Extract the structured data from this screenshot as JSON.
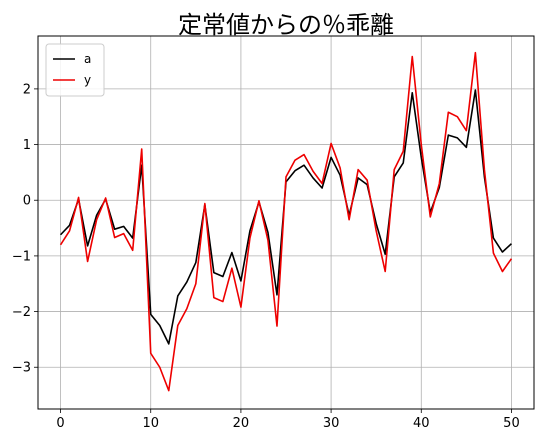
{
  "chart_data": {
    "type": "line",
    "title": "定常値からの％乖離",
    "xlabel": "",
    "ylabel": "",
    "xlim": [
      -2.5,
      52.5
    ],
    "ylim": [
      -3.75,
      2.95
    ],
    "xticks": [
      0,
      10,
      20,
      30,
      40,
      50
    ],
    "yticks": [
      -3,
      -2,
      -1,
      0,
      1,
      2
    ],
    "grid": true,
    "legend_position": "top-left",
    "x": [
      0,
      1,
      2,
      3,
      4,
      5,
      6,
      7,
      8,
      9,
      10,
      11,
      12,
      13,
      14,
      15,
      16,
      17,
      18,
      19,
      20,
      21,
      22,
      23,
      24,
      25,
      26,
      27,
      28,
      29,
      30,
      31,
      32,
      33,
      34,
      35,
      36,
      37,
      38,
      39,
      40,
      41,
      42,
      43,
      44,
      45,
      46,
      47,
      48,
      49,
      50
    ],
    "series": [
      {
        "name": "a",
        "color": "#000000",
        "values": [
          -0.62,
          -0.45,
          0.02,
          -0.82,
          -0.27,
          0.02,
          -0.52,
          -0.47,
          -0.68,
          0.63,
          -2.05,
          -2.25,
          -2.58,
          -1.72,
          -1.47,
          -1.12,
          -0.08,
          -1.3,
          -1.37,
          -0.94,
          -1.45,
          -0.55,
          -0.03,
          -0.58,
          -1.7,
          0.33,
          0.53,
          0.63,
          0.4,
          0.22,
          0.77,
          0.45,
          -0.27,
          0.4,
          0.28,
          -0.42,
          -0.97,
          0.42,
          0.67,
          1.93,
          0.77,
          -0.22,
          0.23,
          1.17,
          1.12,
          0.95,
          1.98,
          0.42,
          -0.68,
          -0.93,
          -0.78
        ]
      },
      {
        "name": "y",
        "color": "#ee0000",
        "values": [
          -0.8,
          -0.55,
          0.05,
          -1.1,
          -0.35,
          0.04,
          -0.67,
          -0.6,
          -0.9,
          0.92,
          -2.75,
          -3.0,
          -3.42,
          -2.25,
          -1.95,
          -1.5,
          -0.06,
          -1.75,
          -1.82,
          -1.22,
          -1.92,
          -0.68,
          -0.01,
          -0.72,
          -2.26,
          0.42,
          0.72,
          0.82,
          0.52,
          0.3,
          1.02,
          0.58,
          -0.35,
          0.55,
          0.36,
          -0.55,
          -1.28,
          0.55,
          0.88,
          2.58,
          1.0,
          -0.3,
          0.3,
          1.58,
          1.5,
          1.25,
          2.65,
          0.55,
          -0.95,
          -1.28,
          -1.05
        ]
      }
    ]
  }
}
